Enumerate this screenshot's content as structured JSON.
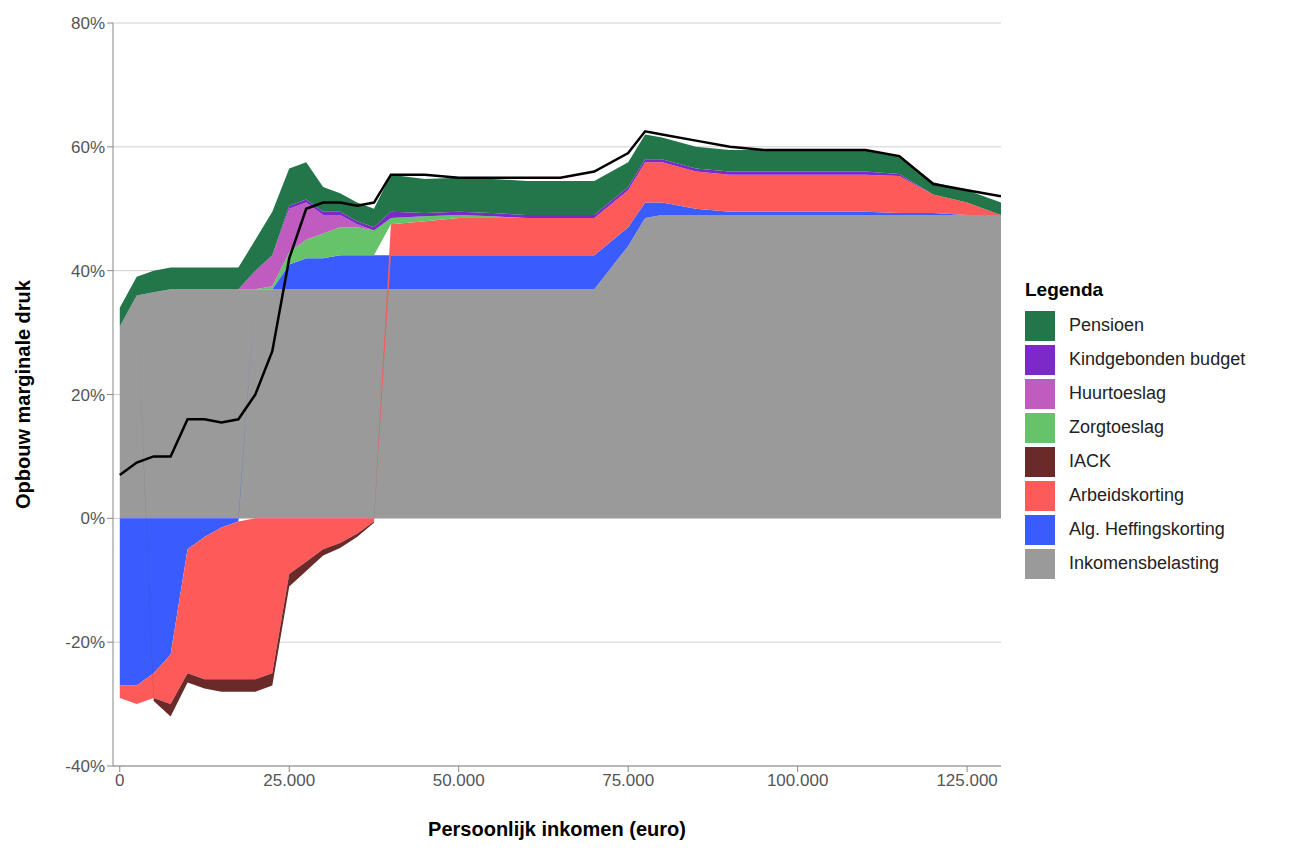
{
  "chart_data": {
    "type": "stacked_area",
    "x_label": "Persoonlijk inkomen (euro)",
    "y_label": "Opbouw marginale druk",
    "legend_title": "Legenda",
    "legend": "right",
    "grid": true,
    "stacked": true,
    "x": [
      0,
      2500,
      5000,
      7500,
      10000,
      12500,
      15000,
      17500,
      20000,
      22500,
      25000,
      27500,
      30000,
      32500,
      35000,
      37500,
      40000,
      45000,
      50000,
      55000,
      60000,
      65000,
      70000,
      75000,
      77500,
      80000,
      85000,
      90000,
      95000,
      100000,
      105000,
      110000,
      115000,
      120000,
      125000,
      130000
    ],
    "xlim": [
      -1000,
      130000
    ],
    "xticks": [
      0,
      {
        "value": 25000,
        "label": "25.000"
      },
      {
        "value": 50000,
        "label": "50.000"
      },
      {
        "value": 75000,
        "label": "75.000"
      },
      {
        "value": 100000,
        "label": "100.000"
      },
      {
        "value": 125000,
        "label": "125.000"
      }
    ],
    "ylim": [
      -40,
      80
    ],
    "yticks": [
      {
        "value": -40,
        "label": "-40%"
      },
      {
        "value": -20,
        "label": "-20%"
      },
      {
        "value": 0,
        "label": "0%"
      },
      {
        "value": 20,
        "label": "20%"
      },
      {
        "value": 40,
        "label": "40%"
      },
      {
        "value": 60,
        "label": "60%"
      },
      {
        "value": 80,
        "label": "80%"
      }
    ],
    "series": [
      {
        "name": "Inkomensbelasting",
        "color": "#9a9a9a",
        "type": "area",
        "values": [
          31,
          36,
          36.5,
          37,
          37,
          37,
          37,
          37,
          37,
          37,
          37,
          37,
          37,
          37,
          37,
          37,
          37,
          37,
          37,
          37,
          37,
          37,
          37,
          44,
          48.5,
          49,
          49,
          49,
          49,
          49,
          49,
          49,
          49,
          49,
          49,
          49
        ]
      },
      {
        "name": "Alg. Heffingskorting",
        "color": "#3a5cff",
        "type": "area",
        "values": [
          -27,
          -27,
          -25,
          -22,
          -5,
          -3,
          -1.5,
          -0.5,
          0,
          0,
          4,
          5,
          5,
          5.5,
          5.5,
          5.5,
          5.5,
          5.5,
          5.5,
          5.5,
          5.5,
          5.5,
          5.5,
          3,
          2.5,
          2,
          1,
          0.5,
          0.5,
          0.5,
          0.5,
          0.5,
          0.3,
          0.3,
          0,
          0
        ]
      },
      {
        "name": "Arbeidskorting",
        "color": "#ff5a5a",
        "type": "area",
        "values": [
          -2,
          -3,
          -4,
          -8,
          -20,
          -23,
          -24.5,
          -25.5,
          -26,
          -25,
          -9,
          -7,
          -5,
          -4,
          -2.5,
          -0.5,
          5,
          5.5,
          6,
          6,
          6,
          6,
          6,
          6,
          6.5,
          6.5,
          6,
          6,
          6,
          6,
          6,
          6,
          6,
          3,
          2,
          0
        ]
      },
      {
        "name": "IACK",
        "color": "#6b2a2a",
        "type": "area",
        "values": [
          0,
          0,
          -0.5,
          -2,
          -1.5,
          -1.5,
          -2,
          -2,
          -2,
          -2,
          -2,
          -1.5,
          -1,
          -0.8,
          -0.5,
          -0.2,
          0,
          0,
          0,
          0,
          0,
          0,
          0,
          0,
          0,
          0,
          0,
          0,
          0,
          0,
          0,
          0,
          0,
          0,
          0,
          0
        ]
      },
      {
        "name": "Zorgtoeslag",
        "color": "#66c36a",
        "type": "area",
        "values": [
          0,
          0,
          0,
          0,
          0,
          0,
          0,
          0,
          0,
          0.5,
          2,
          3,
          4,
          4.5,
          4.5,
          4,
          1,
          0.8,
          0.5,
          0.3,
          0,
          0,
          0,
          0,
          0,
          0,
          0,
          0,
          0,
          0,
          0,
          0,
          0,
          0,
          0,
          0
        ]
      },
      {
        "name": "Huurtoeslag",
        "color": "#c05bbf",
        "type": "area",
        "values": [
          0,
          0,
          0,
          0,
          0,
          0,
          0,
          0,
          3,
          5,
          7,
          6,
          3,
          2,
          0.5,
          0,
          0,
          0,
          0,
          0,
          0,
          0,
          0,
          0,
          0,
          0,
          0,
          0,
          0,
          0,
          0,
          0,
          0,
          0,
          0,
          0
        ]
      },
      {
        "name": "Kindgebonden budget",
        "color": "#7d28c8",
        "type": "area",
        "values": [
          0,
          0,
          0,
          0,
          0,
          0,
          0,
          0,
          0,
          0,
          0.5,
          0.5,
          0.5,
          0.5,
          0.5,
          0.5,
          1,
          0.5,
          0.5,
          0.5,
          0.5,
          0.5,
          0.5,
          0.5,
          0.5,
          0.5,
          0.5,
          0.5,
          0.5,
          0.5,
          0.5,
          0.5,
          0.3,
          0,
          0,
          0
        ]
      },
      {
        "name": "Pensioen",
        "color": "#23754a",
        "type": "area",
        "values": [
          3,
          3,
          3.5,
          3.5,
          3.5,
          3.5,
          3.5,
          3.5,
          5,
          7,
          6,
          6,
          4,
          3,
          3,
          3,
          6,
          5.5,
          5.5,
          5.5,
          5.5,
          5.5,
          5.5,
          4,
          4,
          3.5,
          3.5,
          3.5,
          3.5,
          3.5,
          3.5,
          3.5,
          3,
          2,
          2,
          2
        ]
      },
      {
        "color": "#000000",
        "type": "line",
        "values": [
          7,
          9,
          10,
          10,
          16,
          16,
          15.5,
          16,
          20,
          27,
          42,
          50,
          51,
          51,
          50.5,
          51,
          55.5,
          55.5,
          55,
          55,
          55,
          55,
          56,
          59,
          62.5,
          62,
          61,
          60,
          59.5,
          59.5,
          59.5,
          59.5,
          58.5,
          54,
          53,
          52
        ]
      }
    ]
  }
}
